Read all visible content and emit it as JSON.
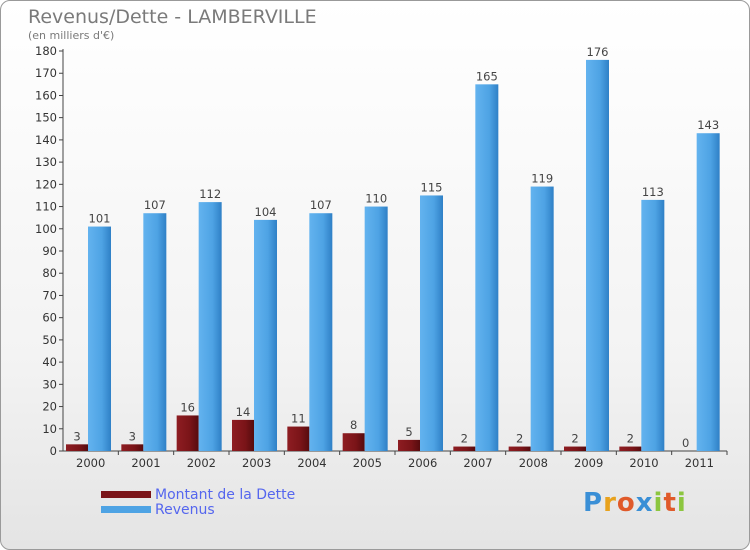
{
  "header": {
    "title": "Revenus/Dette - LAMBERVILLE",
    "subtitle": "(en milliers d'€)"
  },
  "chart_data": {
    "type": "bar",
    "categories": [
      "2000",
      "2001",
      "2002",
      "2003",
      "2004",
      "2005",
      "2006",
      "2007",
      "2008",
      "2009",
      "2010",
      "2011"
    ],
    "series": [
      {
        "name": "Montant de la Dette",
        "values": [
          3,
          3,
          16,
          14,
          11,
          8,
          5,
          2,
          2,
          2,
          2,
          0
        ],
        "color": "#7a1418"
      },
      {
        "name": "Revenus",
        "values": [
          101,
          107,
          112,
          104,
          107,
          110,
          115,
          165,
          119,
          176,
          113,
          143
        ],
        "color": "#4ea3e4"
      }
    ],
    "ylim": [
      0,
      180
    ],
    "yticks": [
      0,
      10,
      20,
      30,
      40,
      50,
      60,
      70,
      80,
      90,
      100,
      110,
      120,
      130,
      140,
      150,
      160,
      170,
      180
    ],
    "grid": false,
    "legend": "bottom-left"
  },
  "branding": {
    "logo_text": "Proxiti",
    "letter_colors": [
      "#3a8fd6",
      "#e8a21d",
      "#e05a2a",
      "#3a8fd6",
      "#8cc63f",
      "#e05a2a",
      "#8cc63f"
    ]
  }
}
